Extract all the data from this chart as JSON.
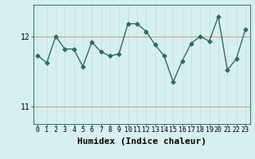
{
  "x": [
    0,
    1,
    2,
    3,
    4,
    5,
    6,
    7,
    8,
    9,
    10,
    11,
    12,
    13,
    14,
    15,
    16,
    17,
    18,
    19,
    20,
    21,
    22,
    23
  ],
  "y": [
    11.73,
    11.62,
    12.0,
    11.82,
    11.82,
    11.57,
    11.92,
    11.78,
    11.72,
    11.75,
    12.18,
    12.18,
    12.07,
    11.88,
    11.72,
    11.35,
    11.65,
    11.9,
    12.0,
    11.93,
    12.28,
    11.52,
    11.68,
    12.1
  ],
  "line_color": "#2e6b5e",
  "marker": "D",
  "markersize": 2.5,
  "linewidth": 1.0,
  "bg_color": "#d6f0ef",
  "grid_color_v": "#c8d8d8",
  "grid_color_h": "#c8a0a0",
  "xlabel": "Humidex (Indice chaleur)",
  "xlabel_fontsize": 8,
  "xlabel_fontweight": "bold",
  "yticks": [
    11,
    12
  ],
  "ylim": [
    10.75,
    12.45
  ],
  "xlim": [
    -0.5,
    23.5
  ],
  "xtick_fontsize": 6,
  "ytick_fontsize": 7
}
